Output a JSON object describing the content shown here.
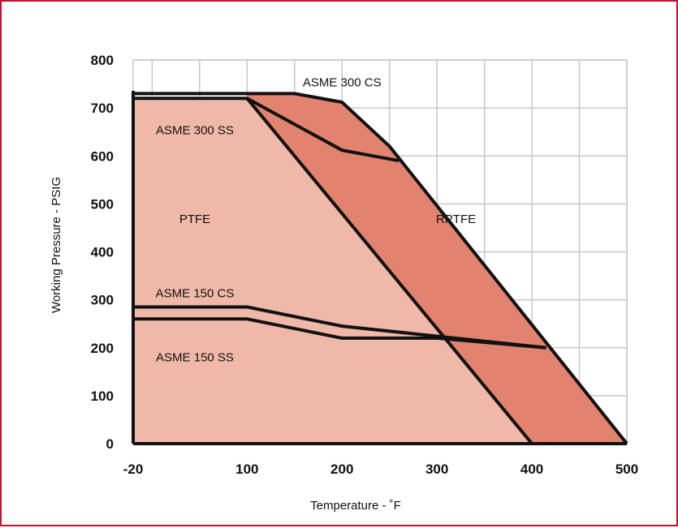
{
  "chart_data": {
    "type": "area",
    "xlabel": "Temperature - ˚F",
    "ylabel": "Working Pressure - PSIG",
    "xlim": [
      -20,
      500
    ],
    "ylim": [
      0,
      800
    ],
    "x_ticks": [
      "-20",
      "100",
      "200",
      "300",
      "400",
      "500"
    ],
    "y_ticks": [
      "0",
      "100",
      "200",
      "300",
      "400",
      "500",
      "600",
      "700",
      "800"
    ],
    "grid": true,
    "colors": {
      "ptfe_fill": "#f0b8a8",
      "rptfe_fill": "#e2836f",
      "lines": "#111111",
      "grid": "#c8c8c8",
      "border": "#c8102e"
    },
    "regions": [
      {
        "name": "PTFE",
        "points": [
          [
            -20,
            0
          ],
          [
            -20,
            720
          ],
          [
            100,
            720
          ],
          [
            400,
            0
          ]
        ]
      },
      {
        "name": "RPTFE",
        "points": [
          [
            100,
            720
          ],
          [
            100,
            730
          ],
          [
            150,
            730
          ],
          [
            200,
            712
          ],
          [
            250,
            620
          ],
          [
            500,
            0
          ],
          [
            400,
            0
          ]
        ]
      }
    ],
    "series": [
      {
        "name": "ASME 300 CS",
        "x": [
          -20,
          100,
          150,
          200,
          250,
          500
        ],
        "y": [
          730,
          730,
          730,
          712,
          620,
          0
        ]
      },
      {
        "name": "ASME 300 SS",
        "x": [
          -20,
          100,
          200,
          260
        ],
        "y": [
          720,
          720,
          612,
          590
        ]
      },
      {
        "name": "ASME 150 CS",
        "x": [
          -20,
          100,
          200,
          415
        ],
        "y": [
          285,
          285,
          245,
          200
        ]
      },
      {
        "name": "ASME 150 SS",
        "x": [
          -20,
          100,
          200,
          300,
          415
        ],
        "y": [
          260,
          260,
          220,
          220,
          200
        ]
      },
      {
        "name": "PTFE",
        "x": [
          100,
          400
        ],
        "y": [
          720,
          0
        ]
      }
    ],
    "labels": [
      {
        "text": "ASME 300 CS",
        "x": 200,
        "y": 745
      },
      {
        "text": "ASME 300 SS",
        "x": 45,
        "y": 645
      },
      {
        "text": "PTFE",
        "x": 45,
        "y": 460
      },
      {
        "text": "RPTFE",
        "x": 320,
        "y": 460
      },
      {
        "text": "ASME 150 CS",
        "x": 45,
        "y": 305
      },
      {
        "text": "ASME 150 SS",
        "x": 45,
        "y": 172
      }
    ]
  }
}
